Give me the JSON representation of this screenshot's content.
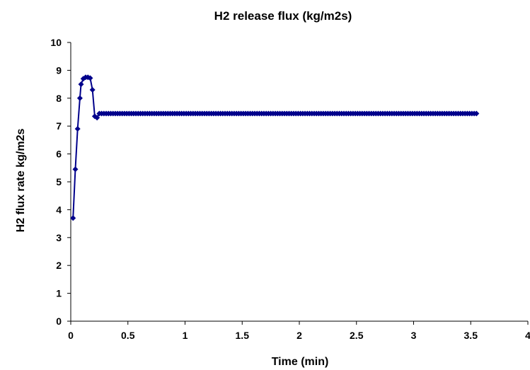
{
  "chart_data": {
    "type": "line",
    "title": "H2 release flux (kg/m2s)",
    "xlabel": "Time (min)",
    "ylabel": "H2 flux rate  kg/m2s",
    "xlim": [
      0,
      4
    ],
    "ylim": [
      0,
      10
    ],
    "x_ticks": [
      "0",
      "0.5",
      "1",
      "1.5",
      "2",
      "2.5",
      "3",
      "3.5",
      "4"
    ],
    "y_ticks": [
      "0",
      "1",
      "2",
      "3",
      "4",
      "5",
      "6",
      "7",
      "8",
      "9",
      "10"
    ],
    "grid": false,
    "legend": "none",
    "series": [
      {
        "color": "#00008B",
        "marker": "diamond",
        "initial_points": {
          "x": [
            0.02,
            0.04,
            0.06,
            0.08,
            0.09,
            0.11,
            0.13,
            0.15,
            0.17,
            0.19,
            0.21,
            0.23
          ],
          "y": [
            3.7,
            5.45,
            6.9,
            8.0,
            8.5,
            8.7,
            8.75,
            8.75,
            8.72,
            8.3,
            7.35,
            7.3
          ]
        },
        "steady_state": {
          "x_start": 0.25,
          "x_end": 3.55,
          "step": 0.02,
          "y": 7.45
        }
      }
    ]
  }
}
